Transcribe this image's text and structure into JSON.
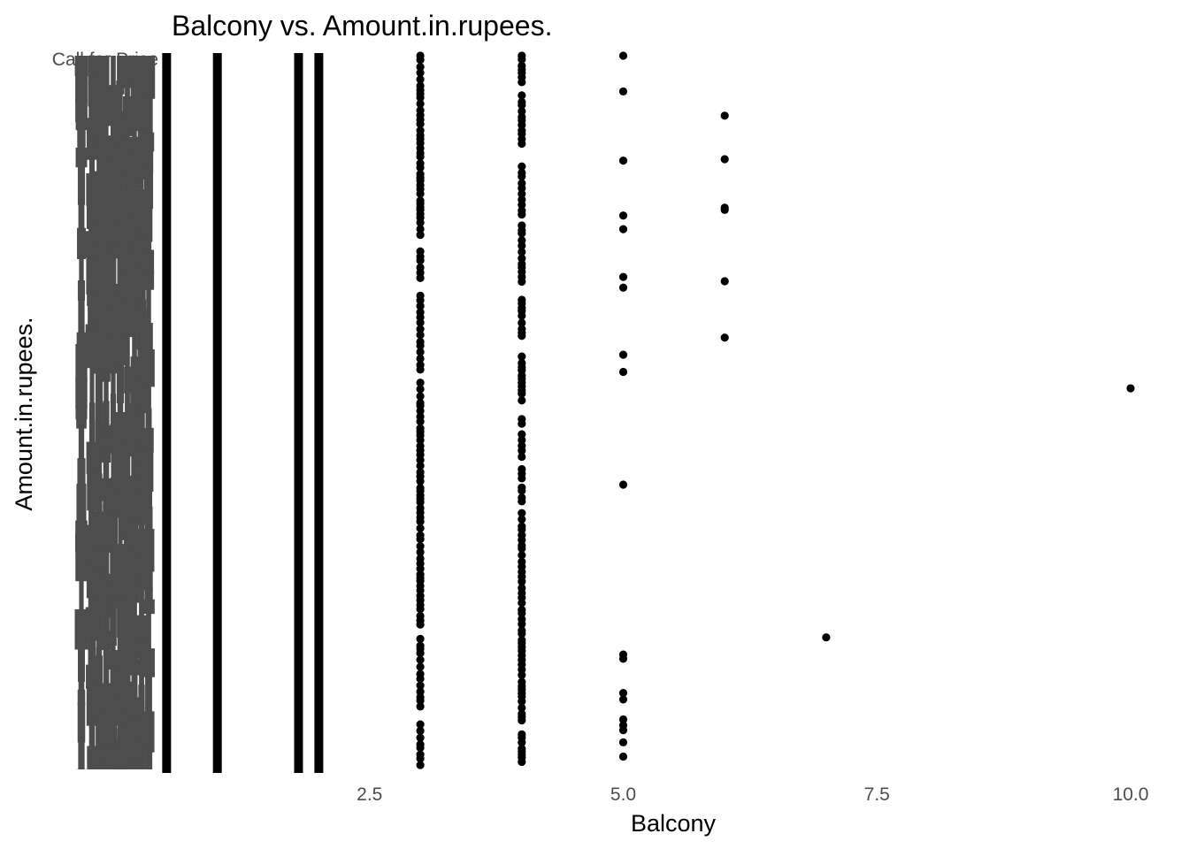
{
  "chart_data": {
    "type": "scatter",
    "title": "Balcony vs. Amount.in.rupees.",
    "xlabel": "Balcony",
    "ylabel": "Amount.in.rupees.",
    "xlim": [
      0,
      10
    ],
    "x_ticks": [
      2.5,
      5.0,
      7.5,
      10.0
    ],
    "x_tick_labels": [
      "2.5",
      "5.0",
      "7.5",
      "10.0"
    ],
    "y_axis": "categorical",
    "y_tick_labels_visible": [
      "Call for Price"
    ],
    "grid": false,
    "legend": "none",
    "point_color": "#000000",
    "tick_label_color": "#4d4d4d",
    "series": [
      {
        "x": 0.5,
        "density": "continuous"
      },
      {
        "x": 1,
        "density": "continuous"
      },
      {
        "x": 1.8,
        "density": "continuous"
      },
      {
        "x": 2,
        "density": "continuous"
      },
      {
        "x": 3,
        "density": "dense"
      },
      {
        "x": 4,
        "density": "dense"
      },
      {
        "x": 5,
        "points_rank": [
          0.0,
          0.05,
          0.147,
          0.224,
          0.243,
          0.31,
          0.325,
          0.419,
          0.443,
          0.601,
          0.839,
          0.845,
          0.893,
          0.902,
          0.93,
          0.938,
          0.945,
          0.962,
          0.982
        ]
      },
      {
        "x": 6,
        "points_rank": [
          0.084,
          0.145,
          0.213,
          0.216,
          0.316,
          0.395
        ]
      },
      {
        "x": 7,
        "points_rank": [
          0.815
        ]
      },
      {
        "x": 10,
        "points_rank": [
          0.466
        ]
      }
    ]
  }
}
